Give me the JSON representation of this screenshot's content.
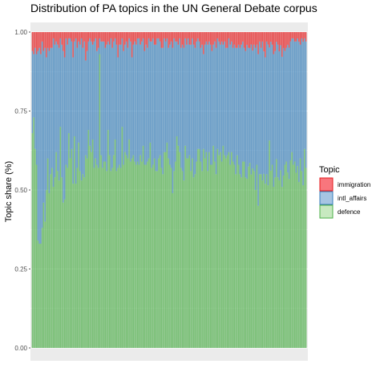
{
  "chart_data": {
    "type": "bar",
    "stacked": true,
    "title": "Distribution of PA topics in the UN General Debate corpus",
    "xlabel": "",
    "ylabel": "Topic share (%)",
    "ylim": [
      0,
      1
    ],
    "y_ticks": [
      "0.00",
      "0.25",
      "0.50",
      "0.75",
      "1.00"
    ],
    "y_tick_values": [
      0,
      0.25,
      0.5,
      0.75,
      1
    ],
    "bar_count": 200,
    "legend": {
      "title": "Topic",
      "position": "right"
    },
    "grid": true,
    "series": [
      {
        "name": "immigration",
        "color": "#F8767D",
        "stroke": "#E41A1C",
        "values": [
          0.06,
          0.07,
          0.05,
          0.07,
          0.06,
          0.05,
          0.07,
          0.03,
          0.06,
          0.05,
          0.08,
          0.05,
          0.06,
          0.05,
          0.05,
          0.02,
          0.04,
          0.03,
          0.04,
          0.05,
          0.02,
          0.04,
          0.06,
          0.08,
          0.02,
          0.04,
          0.02,
          0.02,
          0.03,
          0.08,
          0.03,
          0.02,
          0.05,
          0.03,
          0.04,
          0.02,
          0.05,
          0.03,
          0.09,
          0.06,
          0.03,
          0.02,
          0.03,
          0.04,
          0.03,
          0.02,
          0.06,
          0.05,
          0.02,
          0.03,
          0.03,
          0.03,
          0.05,
          0.04,
          0.03,
          0.04,
          0.02,
          0.05,
          0.03,
          0.02,
          0.04,
          0.08,
          0.04,
          0.04,
          0.02,
          0.06,
          0.04,
          0.03,
          0.05,
          0.02,
          0.03,
          0.08,
          0.04,
          0.03,
          0.04,
          0.02,
          0.02,
          0.04,
          0.03,
          0.02,
          0.06,
          0.04,
          0.05,
          0.02,
          0.03,
          0.03,
          0.02,
          0.04,
          0.04,
          0.02,
          0.02,
          0.03,
          0.05,
          0.05,
          0.02,
          0.03,
          0.02,
          0.05,
          0.04,
          0.03,
          0.05,
          0.02,
          0.03,
          0.03,
          0.04,
          0.02,
          0.05,
          0.04,
          0.05,
          0.02,
          0.04,
          0.02,
          0.04,
          0.04,
          0.02,
          0.04,
          0.05,
          0.03,
          0.02,
          0.03,
          0.05,
          0.04,
          0.07,
          0.04,
          0.03,
          0.04,
          0.03,
          0.04,
          0.06,
          0.04,
          0.03,
          0.05,
          0.02,
          0.03,
          0.04,
          0.03,
          0.04,
          0.03,
          0.05,
          0.05,
          0.02,
          0.04,
          0.03,
          0.05,
          0.04,
          0.05,
          0.05,
          0.04,
          0.05,
          0.04,
          0.03,
          0.05,
          0.06,
          0.04,
          0.05,
          0.05,
          0.04,
          0.06,
          0.04,
          0.05,
          0.04,
          0.07,
          0.03,
          0.05,
          0.03,
          0.06,
          0.08,
          0.03,
          0.04,
          0.05,
          0.03,
          0.04,
          0.07,
          0.06,
          0.03,
          0.04,
          0.06,
          0.04,
          0.08,
          0.05,
          0.06,
          0.05,
          0.04,
          0.05,
          0.03,
          0.02,
          0.02,
          0.03,
          0.03,
          0.02,
          0.03,
          0.04,
          0.02,
          0.03,
          0.02,
          0.03
        ]
      },
      {
        "name": "intl_affairs",
        "color": "#A6C5E3",
        "stroke": "#377EB8",
        "values": [
          0.26,
          0.2,
          0.32,
          0.35,
          0.6,
          0.62,
          0.6,
          0.59,
          0.48,
          0.55,
          0.42,
          0.35,
          0.45,
          0.4,
          0.38,
          0.47,
          0.42,
          0.35,
          0.4,
          0.42,
          0.28,
          0.42,
          0.48,
          0.45,
          0.4,
          0.39,
          0.3,
          0.38,
          0.34,
          0.4,
          0.3,
          0.46,
          0.38,
          0.32,
          0.4,
          0.45,
          0.4,
          0.43,
          0.3,
          0.34,
          0.28,
          0.34,
          0.35,
          0.3,
          0.4,
          0.38,
          0.36,
          0.38,
          0.05,
          0.36,
          0.4,
          0.38,
          0.36,
          0.4,
          0.28,
          0.35,
          0.42,
          0.38,
          0.36,
          0.32,
          0.4,
          0.35,
          0.38,
          0.39,
          0.28,
          0.36,
          0.34,
          0.36,
          0.35,
          0.32,
          0.38,
          0.32,
          0.35,
          0.38,
          0.38,
          0.39,
          0.4,
          0.35,
          0.38,
          0.34,
          0.36,
          0.38,
          0.36,
          0.38,
          0.32,
          0.4,
          0.4,
          0.36,
          0.4,
          0.42,
          0.38,
          0.36,
          0.38,
          0.4,
          0.36,
          0.35,
          0.33,
          0.35,
          0.38,
          0.4,
          0.46,
          0.42,
          0.38,
          0.3,
          0.32,
          0.36,
          0.38,
          0.4,
          0.42,
          0.34,
          0.36,
          0.38,
          0.35,
          0.4,
          0.38,
          0.42,
          0.4,
          0.38,
          0.35,
          0.34,
          0.36,
          0.4,
          0.3,
          0.36,
          0.35,
          0.4,
          0.35,
          0.38,
          0.36,
          0.32,
          0.38,
          0.4,
          0.35,
          0.36,
          0.34,
          0.38,
          0.32,
          0.36,
          0.35,
          0.34,
          0.36,
          0.38,
          0.35,
          0.36,
          0.38,
          0.4,
          0.34,
          0.38,
          0.4,
          0.42,
          0.38,
          0.36,
          0.4,
          0.42,
          0.38,
          0.36,
          0.42,
          0.38,
          0.4,
          0.45,
          0.38,
          0.48,
          0.42,
          0.4,
          0.44,
          0.38,
          0.4,
          0.42,
          0.45,
          0.3,
          0.4,
          0.38,
          0.42,
          0.4,
          0.36,
          0.42,
          0.4,
          0.38,
          0.42,
          0.4,
          0.36,
          0.36,
          0.4,
          0.42,
          0.38,
          0.36,
          0.4,
          0.38,
          0.42,
          0.4,
          0.44,
          0.36,
          0.42,
          0.45,
          0.35,
          0.4,
          0.4,
          0.4,
          0.46,
          0.44
        ]
      },
      {
        "name": "defence",
        "color": "#C7E9C0",
        "stroke": "#4DAF4A",
        "values": [
          0.68,
          0.73,
          0.63,
          0.58,
          0.34,
          0.33,
          0.33,
          0.38,
          0.46,
          0.4,
          0.5,
          0.6,
          0.49,
          0.55,
          0.57,
          0.51,
          0.54,
          0.62,
          0.56,
          0.53,
          0.7,
          0.54,
          0.46,
          0.47,
          0.58,
          0.57,
          0.68,
          0.6,
          0.63,
          0.52,
          0.67,
          0.52,
          0.57,
          0.65,
          0.56,
          0.53,
          0.55,
          0.54,
          0.61,
          0.6,
          0.69,
          0.64,
          0.62,
          0.66,
          0.57,
          0.6,
          0.58,
          0.57,
          0.93,
          0.61,
          0.57,
          0.59,
          0.59,
          0.56,
          0.69,
          0.61,
          0.56,
          0.57,
          0.61,
          0.66,
          0.56,
          0.57,
          0.58,
          0.57,
          0.7,
          0.58,
          0.62,
          0.61,
          0.6,
          0.66,
          0.59,
          0.6,
          0.61,
          0.59,
          0.58,
          0.59,
          0.58,
          0.61,
          0.59,
          0.64,
          0.58,
          0.58,
          0.59,
          0.6,
          0.65,
          0.57,
          0.58,
          0.6,
          0.56,
          0.56,
          0.6,
          0.61,
          0.57,
          0.55,
          0.62,
          0.62,
          0.65,
          0.6,
          0.58,
          0.57,
          0.49,
          0.56,
          0.59,
          0.67,
          0.64,
          0.62,
          0.57,
          0.56,
          0.53,
          0.64,
          0.6,
          0.6,
          0.61,
          0.56,
          0.6,
          0.54,
          0.55,
          0.59,
          0.63,
          0.63,
          0.59,
          0.56,
          0.63,
          0.6,
          0.62,
          0.56,
          0.62,
          0.58,
          0.58,
          0.64,
          0.59,
          0.55,
          0.63,
          0.61,
          0.62,
          0.59,
          0.64,
          0.61,
          0.6,
          0.61,
          0.62,
          0.58,
          0.62,
          0.59,
          0.58,
          0.55,
          0.61,
          0.58,
          0.55,
          0.54,
          0.59,
          0.59,
          0.54,
          0.53,
          0.58,
          0.58,
          0.56,
          0.58,
          0.56,
          0.5,
          0.58,
          0.45,
          0.55,
          0.55,
          0.53,
          0.54,
          0.52,
          0.55,
          0.52,
          0.67,
          0.55,
          0.58,
          0.51,
          0.54,
          0.58,
          0.54,
          0.52,
          0.54,
          0.52,
          0.54,
          0.58,
          0.59,
          0.55,
          0.54,
          0.6,
          0.62,
          0.58,
          0.59,
          0.56,
          0.57,
          0.52,
          0.6,
          0.56,
          0.51,
          0.63,
          0.57,
          0.58,
          0.57,
          0.51,
          0.54
        ]
      }
    ]
  }
}
